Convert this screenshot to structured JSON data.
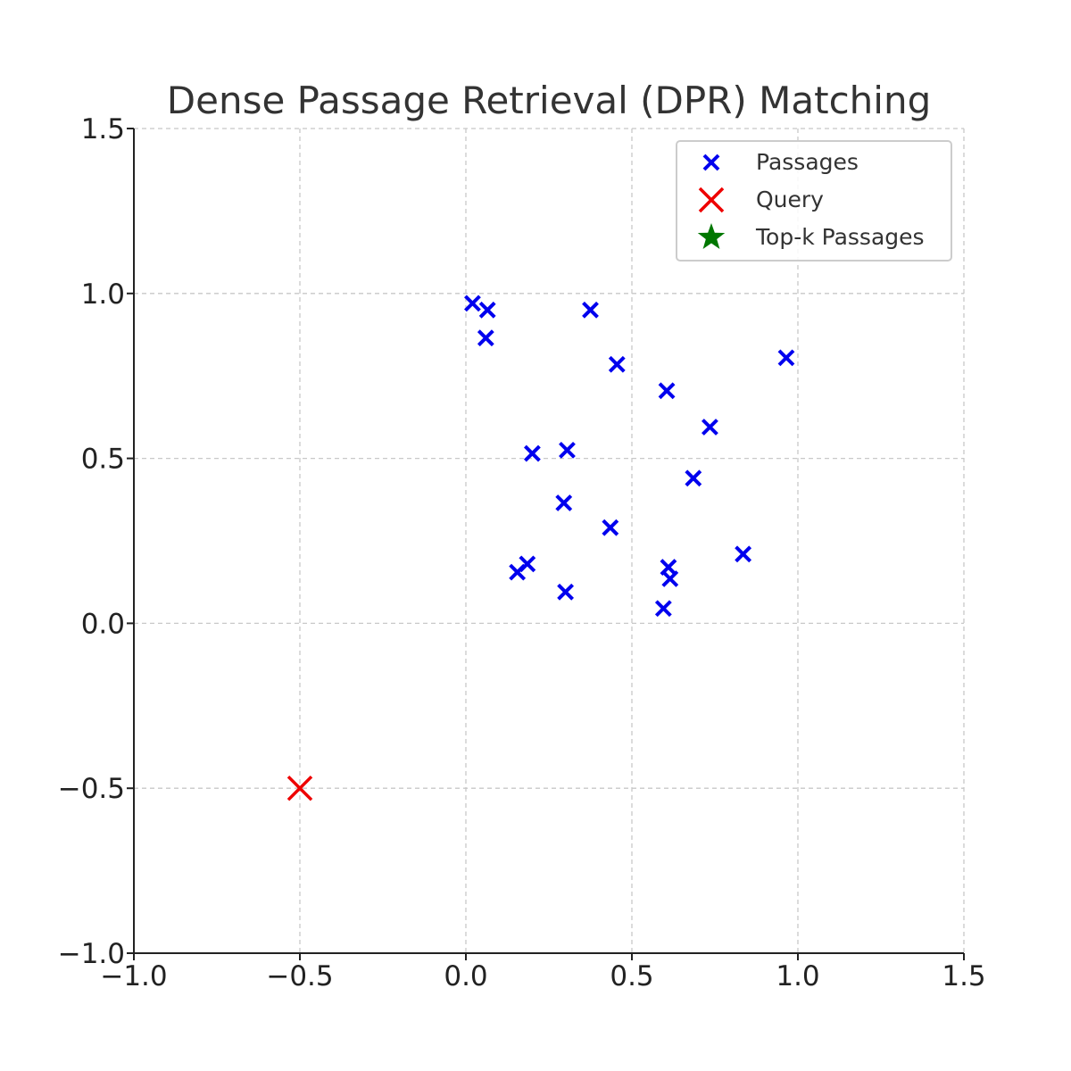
{
  "chart_data": {
    "type": "scatter",
    "title": "Dense Passage Retrieval (DPR) Matching",
    "xlabel": "",
    "ylabel": "",
    "xlim": [
      -1.0,
      1.5
    ],
    "ylim": [
      -1.0,
      1.5
    ],
    "x_ticks": [
      -1.0,
      -0.5,
      0.0,
      0.5,
      1.0,
      1.5
    ],
    "y_ticks": [
      -1.0,
      -0.5,
      0.0,
      0.5,
      1.0,
      1.5
    ],
    "x_tick_labels": [
      "−1.0",
      "−0.5",
      "0.0",
      "0.5",
      "1.0",
      "1.5"
    ],
    "y_tick_labels": [
      "−1.0",
      "−0.5",
      "0.0",
      "0.5",
      "1.0",
      "1.5"
    ],
    "grid": true,
    "legend_position": "top-right",
    "series": [
      {
        "name": "Passages",
        "marker": "x",
        "color": "#0000ee",
        "points": [
          {
            "x": 0.02,
            "y": 0.97
          },
          {
            "x": 0.065,
            "y": 0.95
          },
          {
            "x": 0.06,
            "y": 0.865
          },
          {
            "x": 0.375,
            "y": 0.95
          },
          {
            "x": 0.455,
            "y": 0.785
          },
          {
            "x": 0.965,
            "y": 0.805
          },
          {
            "x": 0.605,
            "y": 0.705
          },
          {
            "x": 0.735,
            "y": 0.595
          },
          {
            "x": 0.2,
            "y": 0.515
          },
          {
            "x": 0.305,
            "y": 0.525
          },
          {
            "x": 0.685,
            "y": 0.44
          },
          {
            "x": 0.295,
            "y": 0.365
          },
          {
            "x": 0.435,
            "y": 0.29
          },
          {
            "x": 0.185,
            "y": 0.18
          },
          {
            "x": 0.155,
            "y": 0.155
          },
          {
            "x": 0.3,
            "y": 0.095
          },
          {
            "x": 0.61,
            "y": 0.17
          },
          {
            "x": 0.615,
            "y": 0.135
          },
          {
            "x": 0.835,
            "y": 0.21
          },
          {
            "x": 0.595,
            "y": 0.045
          }
        ]
      },
      {
        "name": "Query",
        "marker": "x-large",
        "color": "#ee0000",
        "points": [
          {
            "x": -0.5,
            "y": -0.5
          }
        ]
      },
      {
        "name": "Top-k Passages",
        "marker": "star",
        "color": "#007700",
        "points": []
      }
    ]
  }
}
